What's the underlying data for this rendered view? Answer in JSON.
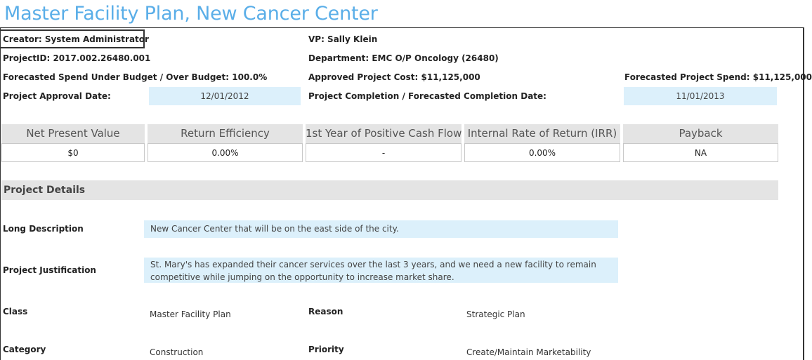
{
  "page": {
    "title": "Master Facility Plan, New Cancer Center"
  },
  "header": {
    "creator": "Creator: System Administrator",
    "vp": "VP: Sally Klein",
    "project_id": "ProjectID: 2017.002.26480.001",
    "department": "Department: EMC O/P Oncology (26480)",
    "forecast_budget": "Forecasted Spend Under Budget / Over Budget: 100.0%",
    "approved_cost": "Approved Project Cost: $11,125,000",
    "forecast_spend": "Forecasted Project Spend: $11,125,000",
    "approval_date_label": "Project Approval Date:",
    "approval_date_value": "12/01/2012",
    "completion_label": "Project Completion / Forecasted Completion Date:",
    "completion_value": "11/01/2013"
  },
  "kpis": [
    {
      "label": "Net Present Value",
      "value": "$0"
    },
    {
      "label": "Return Efficiency",
      "value": "0.00%"
    },
    {
      "label": "1st Year of Positive Cash Flow",
      "value": "-"
    },
    {
      "label": "Internal Rate of Return (IRR)",
      "value": "0.00%"
    },
    {
      "label": "Payback",
      "value": "NA"
    }
  ],
  "details": {
    "section_title": "Project Details",
    "long_description_label": "Long Description",
    "long_description": "New Cancer Center that will be on the east side of the city.",
    "justification_label": "Project Justification",
    "justification": "St. Mary's has expanded their cancer services over the last 3 years, and we need a new facility to remain competitive while jumping on the opportunity to increase market share.",
    "class_label": "Class",
    "class_value": "Master Facility Plan",
    "reason_label": "Reason",
    "reason_value": "Strategic Plan",
    "category_label": "Category",
    "category_value": "Construction",
    "priority_label": "Priority",
    "priority_value": "Create/Maintain Marketability"
  },
  "colors": {
    "title": "#5aaee8",
    "field_bg": "#dcf0fb",
    "header_bg": "#e4e4e4"
  }
}
